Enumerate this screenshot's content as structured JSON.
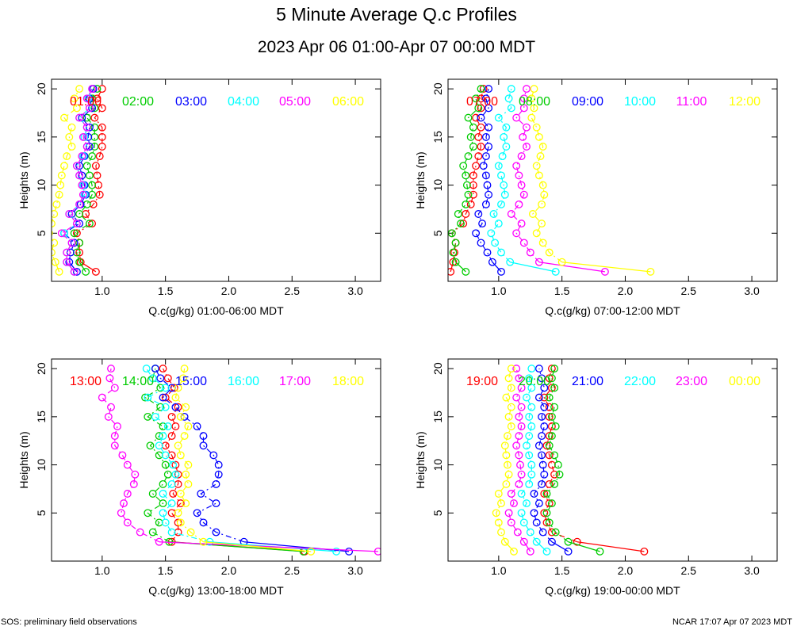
{
  "title": "5 Minute Average Q.c Profiles",
  "subtitle": "2023 Apr 06 01:00-Apr 07 00:00 MDT",
  "footer_left": "SOS: preliminary field observations",
  "footer_right": "NCAR 17:07 Apr 07 2023 MDT",
  "colors": [
    "#ff0000",
    "#00cc00",
    "#0000ff",
    "#00ffff",
    "#ff00ff",
    "#ffff00"
  ],
  "chart_data": [
    {
      "type": "line",
      "xlabel": "Q.c(g/kg) 01:00-06:00 MDT",
      "ylabel": "Heights (m)",
      "xlim": [
        0.6,
        3.2
      ],
      "ylim": [
        0,
        21
      ],
      "xticks": [
        1.0,
        1.5,
        2.0,
        2.5,
        3.0
      ],
      "xtick_labels": [
        "1.0",
        "1.5",
        "2.0",
        "2.5",
        "3.0"
      ],
      "yticks": [
        5,
        10,
        15,
        20
      ],
      "ytick_labels": [
        "5",
        "10",
        "15",
        "20"
      ],
      "heights": [
        1,
        2,
        3,
        4,
        5,
        6,
        7,
        8,
        9,
        10,
        11,
        12,
        13,
        14,
        15,
        16,
        17,
        18,
        19,
        20
      ],
      "series": [
        {
          "name": "01:00",
          "values": [
            0.95,
            0.83,
            0.82,
            0.82,
            0.8,
            0.92,
            0.87,
            0.93,
            0.98,
            0.97,
            0.96,
            0.95,
            0.98,
            1.0,
            1.0,
            1.0,
            0.94,
            1.0,
            0.96,
            1.0
          ]
        },
        {
          "name": "02:00",
          "values": [
            0.87,
            0.82,
            0.8,
            0.82,
            0.78,
            0.9,
            0.82,
            0.88,
            0.92,
            0.92,
            0.9,
            0.88,
            0.92,
            0.94,
            0.94,
            0.94,
            0.88,
            0.94,
            0.92,
            0.96
          ]
        },
        {
          "name": "03:00",
          "values": [
            0.8,
            0.74,
            0.75,
            0.78,
            0.7,
            0.82,
            0.76,
            0.83,
            0.87,
            0.86,
            0.84,
            0.82,
            0.86,
            0.9,
            0.89,
            0.9,
            0.84,
            0.92,
            0.9,
            0.93
          ]
        },
        {
          "name": "04:00",
          "values": [
            0.78,
            0.72,
            0.72,
            0.76,
            0.7,
            0.8,
            0.74,
            0.82,
            0.86,
            0.85,
            0.82,
            0.8,
            0.85,
            0.88,
            0.86,
            0.88,
            0.82,
            0.9,
            0.89,
            0.92
          ]
        },
        {
          "name": "05:00",
          "values": [
            0.78,
            0.72,
            0.72,
            0.76,
            0.68,
            0.8,
            0.74,
            0.82,
            0.85,
            0.84,
            0.82,
            0.8,
            0.84,
            0.88,
            0.85,
            0.88,
            0.82,
            0.9,
            0.88,
            0.92
          ]
        },
        {
          "name": "06:00",
          "values": [
            0.66,
            0.63,
            0.6,
            0.62,
            0.58,
            0.6,
            0.62,
            0.64,
            0.66,
            0.67,
            0.68,
            0.7,
            0.72,
            0.76,
            0.74,
            0.76,
            0.7,
            0.8,
            0.78,
            0.82
          ]
        }
      ]
    },
    {
      "type": "line",
      "xlabel": "Q.c(g/kg) 07:00-12:00 MDT",
      "ylabel": "Heights (m)",
      "xlim": [
        0.6,
        3.2
      ],
      "ylim": [
        0,
        21
      ],
      "xticks": [
        1.0,
        1.5,
        2.0,
        2.5,
        3.0
      ],
      "xtick_labels": [
        "1.0",
        "1.5",
        "2.0",
        "2.5",
        "3.0"
      ],
      "yticks": [
        5,
        10,
        15,
        20
      ],
      "ytick_labels": [
        "5",
        "10",
        "15",
        "20"
      ],
      "heights": [
        1,
        2,
        3,
        4,
        5,
        6,
        7,
        8,
        9,
        10,
        11,
        12,
        13,
        14,
        15,
        16,
        17,
        18,
        19,
        20
      ],
      "series": [
        {
          "name": "07:00",
          "values": [
            0.62,
            0.64,
            0.65,
            0.66,
            0.63,
            0.72,
            0.74,
            0.78,
            0.8,
            0.8,
            0.8,
            0.82,
            0.84,
            0.86,
            0.84,
            0.86,
            0.82,
            0.86,
            0.86,
            0.88
          ]
        },
        {
          "name": "08:00",
          "values": [
            0.74,
            0.66,
            0.64,
            0.66,
            0.63,
            0.7,
            0.68,
            0.74,
            0.76,
            0.75,
            0.74,
            0.72,
            0.76,
            0.8,
            0.78,
            0.8,
            0.76,
            0.84,
            0.82,
            0.86
          ]
        },
        {
          "name": "09:00",
          "values": [
            1.02,
            0.95,
            0.91,
            0.86,
            0.82,
            0.87,
            0.84,
            0.9,
            0.92,
            0.91,
            0.9,
            0.88,
            0.9,
            0.92,
            0.9,
            0.92,
            0.86,
            0.92,
            0.9,
            0.92
          ]
        },
        {
          "name": "10:00",
          "values": [
            1.45,
            1.09,
            1.02,
            0.97,
            0.94,
            1.0,
            0.96,
            1.02,
            1.05,
            1.04,
            1.02,
            1.0,
            1.03,
            1.06,
            1.04,
            1.06,
            1.0,
            1.1,
            1.08,
            1.1
          ]
        },
        {
          "name": "11:00",
          "values": [
            1.84,
            1.32,
            1.25,
            1.2,
            1.14,
            1.18,
            1.1,
            1.16,
            1.2,
            1.18,
            1.16,
            1.14,
            1.18,
            1.22,
            1.19,
            1.22,
            1.14,
            1.2,
            1.2,
            1.22
          ]
        },
        {
          "name": "12:00",
          "values": [
            2.2,
            1.5,
            1.4,
            1.35,
            1.3,
            1.34,
            1.27,
            1.34,
            1.36,
            1.35,
            1.32,
            1.3,
            1.33,
            1.35,
            1.32,
            1.3,
            1.26,
            1.28,
            1.26,
            1.28
          ]
        }
      ]
    },
    {
      "type": "line",
      "xlabel": "Q.c(g/kg) 13:00-18:00 MDT",
      "ylabel": "Heights (m)",
      "xlim": [
        0.6,
        3.2
      ],
      "ylim": [
        0,
        21
      ],
      "xticks": [
        1.0,
        1.5,
        2.0,
        2.5,
        3.0
      ],
      "xtick_labels": [
        "1.0",
        "1.5",
        "2.0",
        "2.5",
        "3.0"
      ],
      "yticks": [
        5,
        10,
        15,
        20
      ],
      "ytick_labels": [
        "5",
        "10",
        "15",
        "20"
      ],
      "heights": [
        1,
        2,
        3,
        4,
        5,
        6,
        7,
        8,
        9,
        10,
        11,
        12,
        13,
        14,
        15,
        16,
        17,
        18,
        19,
        20
      ],
      "series": [
        {
          "name": "13:00",
          "values": [
            2.6,
            1.55,
            1.6,
            1.6,
            1.55,
            1.62,
            1.56,
            1.6,
            1.6,
            1.58,
            1.55,
            1.5,
            1.55,
            1.58,
            1.55,
            1.6,
            1.5,
            1.57,
            1.52,
            1.48
          ]
        },
        {
          "name": "14:00",
          "values": [
            2.59,
            1.53,
            1.4,
            1.45,
            1.36,
            1.48,
            1.4,
            1.48,
            1.52,
            1.5,
            1.45,
            1.38,
            1.45,
            1.48,
            1.36,
            1.46,
            1.34,
            1.46,
            1.4,
            1.42
          ]
        },
        {
          "name": "15:00",
          "values": [
            2.95,
            2.12,
            1.9,
            1.8,
            1.75,
            1.9,
            1.78,
            1.9,
            1.92,
            1.92,
            1.88,
            1.8,
            1.8,
            1.75,
            1.65,
            1.58,
            1.48,
            1.55,
            1.46,
            1.42
          ]
        },
        {
          "name": "16:00",
          "values": [
            2.85,
            1.85,
            1.55,
            1.5,
            1.48,
            1.55,
            1.48,
            1.55,
            1.58,
            1.56,
            1.5,
            1.45,
            1.48,
            1.52,
            1.42,
            1.5,
            1.36,
            1.5,
            1.4,
            1.35
          ]
        },
        {
          "name": "17:00",
          "values": [
            3.18,
            1.45,
            1.3,
            1.2,
            1.15,
            1.17,
            1.2,
            1.25,
            1.26,
            1.2,
            1.16,
            1.1,
            1.1,
            1.12,
            1.05,
            1.07,
            1.0,
            1.1,
            1.06,
            1.07
          ]
        },
        {
          "name": "18:00",
          "values": [
            2.65,
            1.8,
            1.7,
            1.62,
            1.6,
            1.66,
            1.62,
            1.68,
            1.66,
            1.68,
            1.62,
            1.6,
            1.65,
            1.68,
            1.62,
            1.66,
            1.58,
            1.6,
            1.64,
            1.65
          ]
        }
      ]
    },
    {
      "type": "line",
      "xlabel": "Q.c(g/kg) 19:00-00:00 MDT",
      "ylabel": "Heights (m)",
      "xlim": [
        0.6,
        3.2
      ],
      "ylim": [
        0,
        21
      ],
      "xticks": [
        1.0,
        1.5,
        2.0,
        2.5,
        3.0
      ],
      "xtick_labels": [
        "1.0",
        "1.5",
        "2.0",
        "2.5",
        "3.0"
      ],
      "yticks": [
        5,
        10,
        15,
        20
      ],
      "ytick_labels": [
        "5",
        "10",
        "15",
        "20"
      ],
      "heights": [
        1,
        2,
        3,
        4,
        5,
        6,
        7,
        8,
        9,
        10,
        11,
        12,
        13,
        14,
        15,
        16,
        17,
        18,
        19,
        20
      ],
      "series": [
        {
          "name": "19:00",
          "values": [
            2.15,
            1.62,
            1.42,
            1.38,
            1.36,
            1.4,
            1.36,
            1.4,
            1.44,
            1.42,
            1.4,
            1.38,
            1.4,
            1.42,
            1.4,
            1.4,
            1.36,
            1.42,
            1.4,
            1.42
          ]
        },
        {
          "name": "20:00",
          "values": [
            1.8,
            1.55,
            1.45,
            1.4,
            1.38,
            1.42,
            1.38,
            1.44,
            1.48,
            1.47,
            1.44,
            1.4,
            1.42,
            1.45,
            1.42,
            1.44,
            1.4,
            1.44,
            1.42,
            1.44
          ]
        },
        {
          "name": "21:00",
          "values": [
            1.55,
            1.42,
            1.35,
            1.3,
            1.28,
            1.32,
            1.28,
            1.34,
            1.36,
            1.35,
            1.34,
            1.32,
            1.34,
            1.36,
            1.34,
            1.36,
            1.32,
            1.36,
            1.34,
            1.32
          ]
        },
        {
          "name": "22:00",
          "values": [
            1.38,
            1.3,
            1.25,
            1.2,
            1.18,
            1.22,
            1.18,
            1.24,
            1.26,
            1.26,
            1.24,
            1.22,
            1.24,
            1.26,
            1.24,
            1.26,
            1.22,
            1.26,
            1.24,
            1.26
          ]
        },
        {
          "name": "23:00",
          "values": [
            1.25,
            1.2,
            1.15,
            1.1,
            1.08,
            1.12,
            1.1,
            1.16,
            1.18,
            1.17,
            1.16,
            1.14,
            1.16,
            1.18,
            1.16,
            1.18,
            1.14,
            1.18,
            1.16,
            1.14
          ]
        },
        {
          "name": "00:00",
          "values": [
            1.12,
            1.05,
            1.02,
            1.0,
            0.98,
            1.02,
            1.0,
            1.06,
            1.08,
            1.07,
            1.06,
            1.05,
            1.07,
            1.1,
            1.08,
            1.1,
            1.06,
            1.1,
            1.08,
            1.1
          ]
        }
      ]
    }
  ]
}
